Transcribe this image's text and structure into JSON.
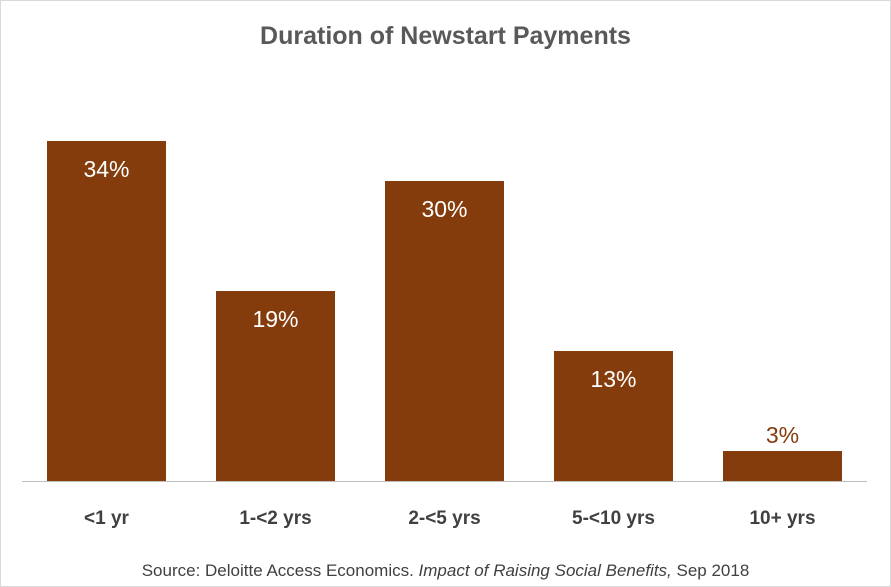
{
  "chart_data": {
    "type": "bar",
    "title": "Duration of Newstart Payments",
    "categories": [
      "<1 yr",
      "1-<2 yrs",
      "2-<5 yrs",
      "5-<10 yrs",
      "10+ yrs"
    ],
    "series": [
      {
        "values": [
          34,
          19,
          30,
          13,
          3
        ],
        "labels": [
          "34%",
          "19%",
          "30%",
          "13%",
          "3%"
        ]
      }
    ],
    "xlabel": "",
    "ylabel": "",
    "ylim": [
      0,
      34
    ],
    "grid": false,
    "legend": "none",
    "bar_color": "#843c0c",
    "label_color_inside": "#ffffff",
    "label_color_outside": "#843c0c"
  },
  "source": {
    "prefix": "Source: Deloitte Access Economics. ",
    "title": "Impact of Raising Social Benefits,",
    "suffix": " Sep 2018"
  }
}
